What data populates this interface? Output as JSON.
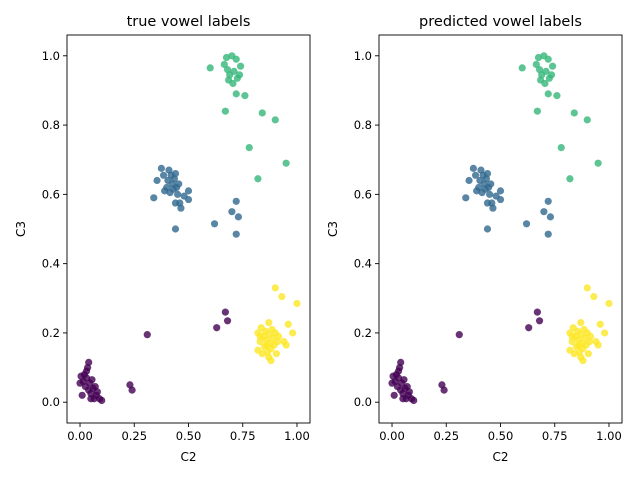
{
  "chart_data": [
    {
      "type": "scatter",
      "title": "true vowel labels",
      "xlabel": "C2",
      "ylabel": "C3",
      "xlim": [
        -0.06,
        1.06
      ],
      "ylim": [
        -0.06,
        1.06
      ],
      "xticks": [
        "0.00",
        "0.25",
        "0.50",
        "0.75",
        "1.00"
      ],
      "yticks": [
        "0.0",
        "0.2",
        "0.4",
        "0.6",
        "0.8",
        "1.0"
      ],
      "grid": false,
      "series": [
        {
          "color": "#440154",
          "points": [
            [
              0.0,
              0.055
            ],
            [
              0.005,
              0.075
            ],
            [
              0.01,
              0.02
            ],
            [
              0.015,
              0.06
            ],
            [
              0.02,
              0.08
            ],
            [
              0.025,
              0.045
            ],
            [
              0.03,
              0.07
            ],
            [
              0.035,
              0.1
            ],
            [
              0.04,
              0.115
            ],
            [
              0.04,
              0.035
            ],
            [
              0.045,
              0.055
            ],
            [
              0.05,
              0.025
            ],
            [
              0.055,
              0.065
            ],
            [
              0.06,
              0.04
            ],
            [
              0.065,
              0.01
            ],
            [
              0.07,
              0.045
            ],
            [
              0.075,
              0.02
            ],
            [
              0.08,
              0.03
            ],
            [
              0.09,
              0.01
            ],
            [
              0.1,
              0.005
            ],
            [
              0.05,
              0.01
            ],
            [
              0.03,
              0.09
            ],
            [
              0.23,
              0.05
            ],
            [
              0.24,
              0.035
            ],
            [
              0.31,
              0.195
            ],
            [
              0.63,
              0.215
            ],
            [
              0.67,
              0.26
            ],
            [
              0.68,
              0.235
            ]
          ]
        },
        {
          "color": "#31688e",
          "points": [
            [
              0.34,
              0.59
            ],
            [
              0.355,
              0.64
            ],
            [
              0.375,
              0.675
            ],
            [
              0.385,
              0.655
            ],
            [
              0.39,
              0.61
            ],
            [
              0.4,
              0.62
            ],
            [
              0.405,
              0.64
            ],
            [
              0.41,
              0.67
            ],
            [
              0.415,
              0.605
            ],
            [
              0.42,
              0.655
            ],
            [
              0.425,
              0.63
            ],
            [
              0.43,
              0.615
            ],
            [
              0.435,
              0.645
            ],
            [
              0.44,
              0.66
            ],
            [
              0.445,
              0.62
            ],
            [
              0.45,
              0.6
            ],
            [
              0.455,
              0.63
            ],
            [
              0.46,
              0.575
            ],
            [
              0.465,
              0.56
            ],
            [
              0.44,
              0.5
            ],
            [
              0.44,
              0.575
            ],
            [
              0.5,
              0.61
            ],
            [
              0.5,
              0.585
            ],
            [
              0.48,
              0.595
            ],
            [
              0.62,
              0.515
            ],
            [
              0.7,
              0.55
            ],
            [
              0.72,
              0.58
            ],
            [
              0.72,
              0.485
            ],
            [
              0.73,
              0.535
            ]
          ]
        },
        {
          "color": "#35b779",
          "points": [
            [
              0.6,
              0.965
            ],
            [
              0.665,
              0.975
            ],
            [
              0.675,
              0.995
            ],
            [
              0.68,
              0.96
            ],
            [
              0.685,
              0.93
            ],
            [
              0.69,
              0.945
            ],
            [
              0.7,
              1.0
            ],
            [
              0.705,
              0.92
            ],
            [
              0.71,
              0.955
            ],
            [
              0.72,
              0.99
            ],
            [
              0.725,
              0.935
            ],
            [
              0.735,
              0.945
            ],
            [
              0.74,
              0.97
            ],
            [
              0.72,
              0.89
            ],
            [
              0.76,
              0.885
            ],
            [
              0.67,
              0.84
            ],
            [
              0.78,
              0.735
            ],
            [
              0.82,
              0.645
            ],
            [
              0.84,
              0.835
            ],
            [
              0.9,
              0.815
            ],
            [
              0.95,
              0.69
            ]
          ]
        },
        {
          "color": "#fde725",
          "points": [
            [
              0.82,
              0.15
            ],
            [
              0.82,
              0.2
            ],
            [
              0.83,
              0.175
            ],
            [
              0.835,
              0.215
            ],
            [
              0.84,
              0.14
            ],
            [
              0.845,
              0.19
            ],
            [
              0.85,
              0.16
            ],
            [
              0.855,
              0.205
            ],
            [
              0.86,
              0.18
            ],
            [
              0.865,
              0.145
            ],
            [
              0.87,
              0.195
            ],
            [
              0.875,
              0.17
            ],
            [
              0.88,
              0.155
            ],
            [
              0.885,
              0.21
            ],
            [
              0.89,
              0.185
            ],
            [
              0.895,
              0.165
            ],
            [
              0.9,
              0.2
            ],
            [
              0.905,
              0.14
            ],
            [
              0.91,
              0.175
            ],
            [
              0.915,
              0.19
            ],
            [
              0.88,
              0.12
            ],
            [
              0.95,
              0.165
            ],
            [
              0.96,
              0.225
            ],
            [
              0.98,
              0.2
            ],
            [
              0.9,
              0.33
            ],
            [
              0.93,
              0.305
            ],
            [
              1.0,
              0.285
            ],
            [
              0.87,
              0.23
            ],
            [
              0.94,
              0.175
            ],
            [
              0.86,
              0.165
            ],
            [
              0.83,
              0.19
            ],
            [
              0.87,
              0.13
            ]
          ]
        }
      ]
    },
    {
      "type": "scatter",
      "title": "predicted vowel labels",
      "xlabel": "C2",
      "ylabel": "C3",
      "xlim": [
        -0.06,
        1.06
      ],
      "ylim": [
        -0.06,
        1.06
      ],
      "xticks": [
        "0.00",
        "0.25",
        "0.50",
        "0.75",
        "1.00"
      ],
      "yticks": [
        "0.0",
        "0.2",
        "0.4",
        "0.6",
        "0.8",
        "1.0"
      ],
      "grid": false,
      "series": [
        {
          "color": "#440154",
          "points": [
            [
              0.0,
              0.055
            ],
            [
              0.005,
              0.075
            ],
            [
              0.01,
              0.02
            ],
            [
              0.015,
              0.06
            ],
            [
              0.02,
              0.08
            ],
            [
              0.025,
              0.045
            ],
            [
              0.03,
              0.07
            ],
            [
              0.035,
              0.1
            ],
            [
              0.04,
              0.115
            ],
            [
              0.04,
              0.035
            ],
            [
              0.045,
              0.055
            ],
            [
              0.05,
              0.025
            ],
            [
              0.055,
              0.065
            ],
            [
              0.06,
              0.04
            ],
            [
              0.065,
              0.01
            ],
            [
              0.07,
              0.045
            ],
            [
              0.075,
              0.02
            ],
            [
              0.08,
              0.03
            ],
            [
              0.09,
              0.01
            ],
            [
              0.1,
              0.005
            ],
            [
              0.05,
              0.01
            ],
            [
              0.03,
              0.09
            ],
            [
              0.23,
              0.05
            ],
            [
              0.24,
              0.035
            ],
            [
              0.31,
              0.195
            ],
            [
              0.63,
              0.215
            ],
            [
              0.67,
              0.26
            ],
            [
              0.68,
              0.235
            ]
          ]
        },
        {
          "color": "#31688e",
          "points": [
            [
              0.34,
              0.59
            ],
            [
              0.355,
              0.64
            ],
            [
              0.375,
              0.675
            ],
            [
              0.385,
              0.655
            ],
            [
              0.39,
              0.61
            ],
            [
              0.4,
              0.62
            ],
            [
              0.405,
              0.64
            ],
            [
              0.41,
              0.67
            ],
            [
              0.415,
              0.605
            ],
            [
              0.42,
              0.655
            ],
            [
              0.425,
              0.63
            ],
            [
              0.43,
              0.615
            ],
            [
              0.435,
              0.645
            ],
            [
              0.44,
              0.66
            ],
            [
              0.445,
              0.62
            ],
            [
              0.45,
              0.6
            ],
            [
              0.455,
              0.63
            ],
            [
              0.46,
              0.575
            ],
            [
              0.465,
              0.56
            ],
            [
              0.44,
              0.5
            ],
            [
              0.44,
              0.575
            ],
            [
              0.5,
              0.61
            ],
            [
              0.5,
              0.585
            ],
            [
              0.48,
              0.595
            ],
            [
              0.62,
              0.515
            ],
            [
              0.7,
              0.55
            ],
            [
              0.72,
              0.58
            ],
            [
              0.72,
              0.485
            ],
            [
              0.73,
              0.535
            ]
          ]
        },
        {
          "color": "#35b779",
          "points": [
            [
              0.6,
              0.965
            ],
            [
              0.665,
              0.975
            ],
            [
              0.675,
              0.995
            ],
            [
              0.68,
              0.96
            ],
            [
              0.685,
              0.93
            ],
            [
              0.69,
              0.945
            ],
            [
              0.7,
              1.0
            ],
            [
              0.705,
              0.92
            ],
            [
              0.71,
              0.955
            ],
            [
              0.72,
              0.99
            ],
            [
              0.725,
              0.935
            ],
            [
              0.735,
              0.945
            ],
            [
              0.74,
              0.97
            ],
            [
              0.72,
              0.89
            ],
            [
              0.76,
              0.885
            ],
            [
              0.67,
              0.84
            ],
            [
              0.78,
              0.735
            ],
            [
              0.82,
              0.645
            ],
            [
              0.84,
              0.835
            ],
            [
              0.9,
              0.815
            ],
            [
              0.95,
              0.69
            ]
          ]
        },
        {
          "color": "#fde725",
          "points": [
            [
              0.82,
              0.15
            ],
            [
              0.82,
              0.2
            ],
            [
              0.83,
              0.175
            ],
            [
              0.835,
              0.215
            ],
            [
              0.84,
              0.14
            ],
            [
              0.845,
              0.19
            ],
            [
              0.85,
              0.16
            ],
            [
              0.855,
              0.205
            ],
            [
              0.86,
              0.18
            ],
            [
              0.865,
              0.145
            ],
            [
              0.87,
              0.195
            ],
            [
              0.875,
              0.17
            ],
            [
              0.88,
              0.155
            ],
            [
              0.885,
              0.21
            ],
            [
              0.89,
              0.185
            ],
            [
              0.895,
              0.165
            ],
            [
              0.9,
              0.2
            ],
            [
              0.905,
              0.14
            ],
            [
              0.91,
              0.175
            ],
            [
              0.915,
              0.19
            ],
            [
              0.88,
              0.12
            ],
            [
              0.95,
              0.165
            ],
            [
              0.96,
              0.225
            ],
            [
              0.98,
              0.2
            ],
            [
              0.9,
              0.33
            ],
            [
              0.93,
              0.305
            ],
            [
              1.0,
              0.285
            ],
            [
              0.87,
              0.23
            ],
            [
              0.94,
              0.175
            ],
            [
              0.86,
              0.165
            ],
            [
              0.83,
              0.19
            ],
            [
              0.87,
              0.13
            ]
          ]
        }
      ]
    }
  ]
}
